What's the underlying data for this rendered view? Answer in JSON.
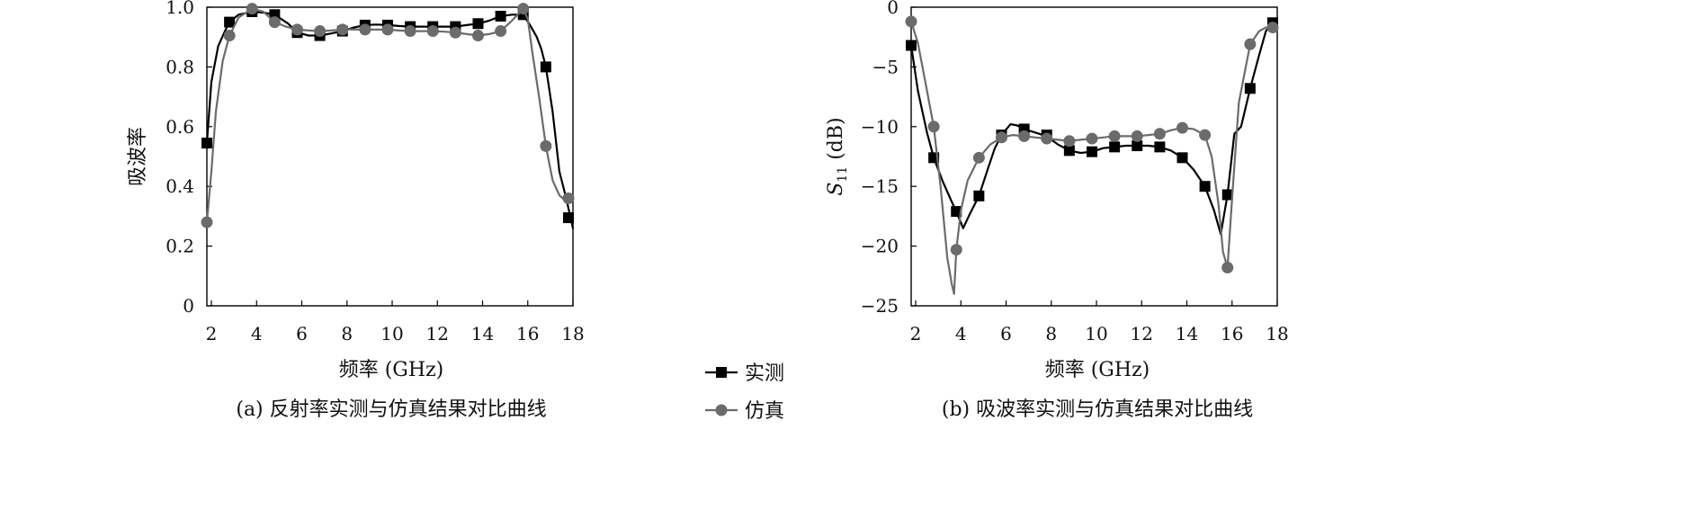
{
  "chart_data": [
    {
      "type": "line",
      "caption": "(a) 反射率实测与仿真结果对比曲线",
      "xlabel": "频率 (GHz)",
      "ylabel": "吸波率",
      "xlim": [
        1.8,
        18.0
      ],
      "ylim": [
        0,
        1.0
      ],
      "xticks": [
        2,
        4,
        6,
        8,
        10,
        12,
        14,
        16,
        18
      ],
      "yticks": [
        0,
        0.2,
        0.4,
        0.6,
        0.8,
        1.0
      ],
      "ytick_labels": [
        "0",
        "0.2",
        "0.4",
        "0.6",
        "0.8",
        "1.0"
      ],
      "grid": false,
      "series": [
        {
          "name": "实测",
          "color": "#000000",
          "marker": "square",
          "markers_x": [
            1.8,
            2.8,
            3.8,
            4.8,
            5.8,
            6.8,
            7.8,
            8.8,
            9.8,
            10.8,
            11.8,
            12.8,
            13.8,
            14.8,
            15.8,
            16.8,
            17.8
          ],
          "markers_y": [
            0.545,
            0.95,
            0.985,
            0.975,
            0.915,
            0.905,
            0.92,
            0.94,
            0.94,
            0.935,
            0.935,
            0.935,
            0.945,
            0.97,
            0.975,
            0.8,
            0.295
          ],
          "line_x": [
            1.8,
            2.0,
            2.3,
            2.6,
            2.8,
            3.2,
            3.8,
            4.3,
            4.8,
            5.4,
            5.8,
            6.3,
            6.8,
            7.3,
            7.8,
            8.3,
            8.8,
            9.3,
            9.8,
            10.3,
            10.8,
            11.3,
            11.8,
            12.3,
            12.8,
            13.3,
            13.8,
            14.3,
            14.8,
            15.3,
            15.8,
            16.1,
            16.4,
            16.6,
            16.8,
            17.1,
            17.4,
            17.7,
            18.0
          ],
          "line_y": [
            0.545,
            0.75,
            0.87,
            0.92,
            0.95,
            0.975,
            0.985,
            0.982,
            0.975,
            0.945,
            0.915,
            0.905,
            0.905,
            0.912,
            0.92,
            0.932,
            0.94,
            0.942,
            0.94,
            0.937,
            0.935,
            0.935,
            0.935,
            0.935,
            0.935,
            0.94,
            0.945,
            0.955,
            0.97,
            0.975,
            0.975,
            0.94,
            0.9,
            0.86,
            0.8,
            0.65,
            0.45,
            0.36,
            0.26
          ]
        },
        {
          "name": "仿真",
          "color": "#6b6b6b",
          "marker": "circle",
          "markers_x": [
            1.8,
            2.8,
            3.8,
            4.8,
            5.8,
            6.8,
            7.8,
            8.8,
            9.8,
            10.8,
            11.8,
            12.8,
            13.8,
            14.8,
            15.8,
            16.8,
            17.8
          ],
          "markers_y": [
            0.28,
            0.905,
            0.995,
            0.95,
            0.925,
            0.92,
            0.925,
            0.925,
            0.925,
            0.92,
            0.92,
            0.915,
            0.905,
            0.92,
            0.995,
            0.535,
            0.36
          ],
          "line_x": [
            1.8,
            2.0,
            2.2,
            2.5,
            2.8,
            3.2,
            3.8,
            4.3,
            4.8,
            5.3,
            5.8,
            6.3,
            6.8,
            7.3,
            7.8,
            8.3,
            8.8,
            9.3,
            9.8,
            10.3,
            10.8,
            11.3,
            11.8,
            12.3,
            12.8,
            13.3,
            13.8,
            14.3,
            14.8,
            15.3,
            15.8,
            16.0,
            16.2,
            16.5,
            16.8,
            17.1,
            17.4,
            17.7,
            18.0
          ],
          "line_y": [
            0.28,
            0.45,
            0.65,
            0.82,
            0.905,
            0.965,
            0.995,
            0.985,
            0.95,
            0.935,
            0.925,
            0.922,
            0.92,
            0.922,
            0.925,
            0.926,
            0.925,
            0.925,
            0.925,
            0.922,
            0.92,
            0.92,
            0.92,
            0.918,
            0.915,
            0.91,
            0.905,
            0.91,
            0.92,
            0.955,
            0.995,
            0.96,
            0.85,
            0.7,
            0.535,
            0.42,
            0.37,
            0.35,
            0.36
          ]
        }
      ]
    },
    {
      "type": "line",
      "caption": "(b) 吸波率实测与仿真结果对比曲线",
      "xlabel": "频率 (GHz)",
      "ylabel_main": "S",
      "ylabel_sub": "11",
      "ylabel_unit": " (dB)",
      "xlim": [
        1.8,
        18.0
      ],
      "ylim": [
        -25,
        0
      ],
      "xticks": [
        2,
        4,
        6,
        8,
        10,
        12,
        14,
        16,
        18
      ],
      "yticks": [
        0,
        -5,
        -10,
        -15,
        -20,
        -25
      ],
      "ytick_labels": [
        "0",
        "−5",
        "−10",
        "−15",
        "−20",
        "−25"
      ],
      "grid": false,
      "series": [
        {
          "name": "实测",
          "color": "#000000",
          "marker": "square",
          "markers_x": [
            1.8,
            2.8,
            3.8,
            4.8,
            5.8,
            6.8,
            7.8,
            8.8,
            9.8,
            10.8,
            11.8,
            12.8,
            13.8,
            14.8,
            15.8,
            16.8,
            17.8
          ],
          "markers_y": [
            -3.2,
            -12.6,
            -17.1,
            -15.8,
            -10.7,
            -10.2,
            -10.7,
            -12.0,
            -12.1,
            -11.7,
            -11.6,
            -11.7,
            -12.6,
            -15.0,
            -15.7,
            -6.8,
            -1.3
          ],
          "line_x": [
            1.8,
            2.1,
            2.5,
            2.8,
            3.2,
            3.6,
            3.8,
            4.1,
            4.4,
            4.8,
            5.2,
            5.5,
            5.8,
            6.2,
            6.5,
            6.8,
            7.3,
            7.8,
            8.3,
            8.8,
            9.3,
            9.8,
            10.3,
            10.8,
            11.3,
            11.8,
            12.3,
            12.8,
            13.3,
            13.8,
            14.3,
            14.8,
            15.2,
            15.5,
            15.8,
            16.1,
            16.4,
            16.8,
            17.2,
            17.5,
            17.8,
            18.0
          ],
          "line_y": [
            -3.2,
            -7.0,
            -10.5,
            -12.6,
            -14.6,
            -16.3,
            -17.1,
            -18.5,
            -17.3,
            -15.8,
            -13.5,
            -11.8,
            -10.7,
            -9.8,
            -9.9,
            -10.2,
            -10.5,
            -10.8,
            -11.5,
            -12.0,
            -12.2,
            -12.1,
            -11.8,
            -11.7,
            -11.6,
            -11.6,
            -11.6,
            -11.7,
            -12.0,
            -12.6,
            -13.6,
            -15.0,
            -17.0,
            -19.0,
            -15.7,
            -10.6,
            -10.0,
            -6.8,
            -4.0,
            -2.0,
            -1.3,
            -1.3
          ]
        },
        {
          "name": "仿真",
          "color": "#6b6b6b",
          "marker": "circle",
          "markers_x": [
            1.8,
            2.8,
            3.8,
            4.8,
            5.8,
            6.8,
            7.8,
            8.8,
            9.8,
            10.8,
            11.8,
            12.8,
            13.8,
            14.8,
            15.8,
            16.8,
            17.8
          ],
          "markers_y": [
            -1.2,
            -10.0,
            -20.3,
            -12.6,
            -10.9,
            -10.8,
            -11.0,
            -11.2,
            -11.0,
            -10.8,
            -10.8,
            -10.6,
            -10.1,
            -10.7,
            -21.8,
            -3.1,
            -1.7
          ],
          "line_x": [
            1.8,
            2.1,
            2.4,
            2.8,
            3.1,
            3.4,
            3.6,
            3.7,
            3.8,
            4.0,
            4.3,
            4.8,
            5.3,
            5.8,
            6.3,
            6.8,
            7.3,
            7.8,
            8.3,
            8.8,
            9.3,
            9.8,
            10.3,
            10.8,
            11.3,
            11.8,
            12.3,
            12.8,
            13.3,
            13.8,
            14.3,
            14.8,
            15.1,
            15.4,
            15.6,
            15.8,
            16.0,
            16.3,
            16.8,
            17.2,
            17.5,
            17.8,
            18.0
          ],
          "line_y": [
            -1.2,
            -3.0,
            -6.0,
            -10.0,
            -15.0,
            -21.0,
            -23.2,
            -24.0,
            -20.3,
            -17.0,
            -14.5,
            -12.6,
            -11.5,
            -10.9,
            -10.7,
            -10.8,
            -10.9,
            -11.0,
            -11.1,
            -11.2,
            -11.1,
            -11.0,
            -10.9,
            -10.8,
            -10.8,
            -10.8,
            -10.7,
            -10.6,
            -10.3,
            -10.1,
            -10.2,
            -10.7,
            -12.5,
            -16.5,
            -20.5,
            -21.8,
            -16.0,
            -8.0,
            -3.1,
            -2.0,
            -1.7,
            -1.7,
            -1.6
          ]
        }
      ]
    }
  ],
  "legend": {
    "items": [
      {
        "label": "实测",
        "color": "#000000",
        "marker": "square"
      },
      {
        "label": "仿真",
        "color": "#6b6b6b",
        "marker": "circle"
      }
    ]
  }
}
